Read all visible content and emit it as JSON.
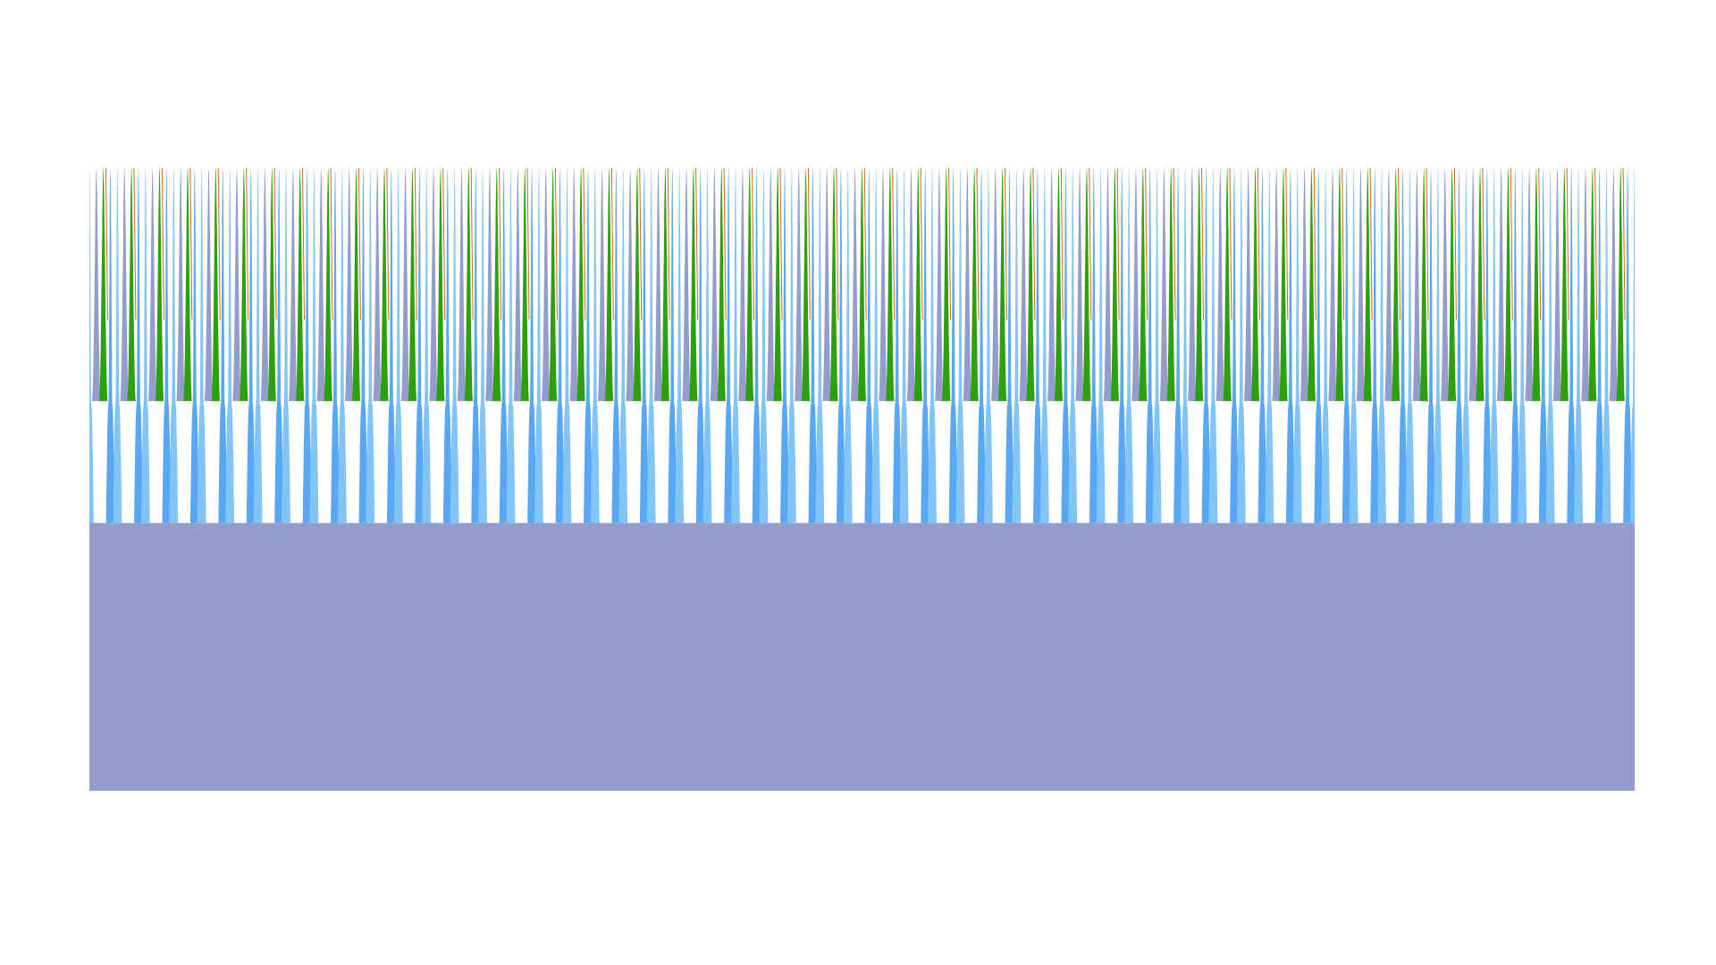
{
  "chart_data": {
    "type": "area",
    "stacked": false,
    "title": "",
    "xlabel": "",
    "ylabel": "",
    "grid": false,
    "legend": "none",
    "axes_visible": false,
    "xlim": [
      0,
      55
    ],
    "ylim": [
      0,
      1
    ],
    "pattern": {
      "cycles": 55,
      "waves_per_cycle": 4,
      "wave_order": [
        "layer-2-lightblue",
        "layer-3-periwinkle",
        "layer-4-green",
        "layer-5-blue"
      ],
      "top_value": 1.0,
      "notch_value": 0.62,
      "trough_value": 0.43,
      "deep_trough_value": 0.43
    },
    "series": [
      {
        "color": "#949cce",
        "role": "base",
        "baseline_value": 0.43,
        "min_value": 0.43,
        "max_value": 1.0
      },
      {
        "color": "#82c4f5",
        "role": "wave",
        "min_value": 0.43,
        "max_value": 1.0
      },
      {
        "color": "#949cce",
        "role": "wave",
        "min_value": 0.62,
        "max_value": 1.0
      },
      {
        "color": "#2ca10b",
        "role": "wave",
        "min_value": 0.62,
        "max_value": 1.0
      },
      {
        "color": "#58a7f4",
        "role": "wave",
        "min_value": 0.43,
        "max_value": 1.0
      }
    ],
    "edge_colors": [
      "#d2691e",
      "#e17ba0"
    ]
  }
}
